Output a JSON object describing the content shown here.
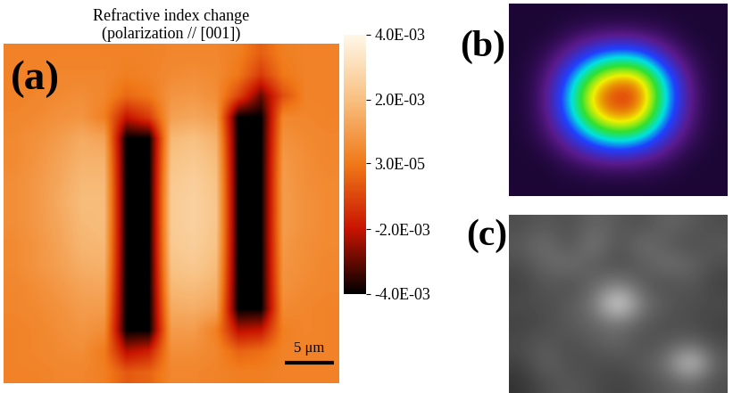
{
  "chart_data": {
    "type": "heatmap",
    "title": "Refractive index change",
    "subtitle": "(polarization // [001])",
    "panel_label": "(a)",
    "annotations": [
      "5 μm"
    ],
    "tick_labels": false,
    "cells": [
      [
        0.0003,
        0.0003,
        0.0003,
        0.0003,
        0.0003,
        0.0003,
        0.0003,
        0.0004,
        0.0004,
        0.0004,
        0.0002,
        -0.0005,
        0.0002,
        0.0003,
        0.0003
      ],
      [
        0.0003,
        0.0003,
        0.0004,
        0.0004,
        0.0004,
        0.0002,
        0.0003,
        0.0005,
        0.0006,
        0.0005,
        0.0,
        -0.0012,
        0.0,
        0.0003,
        0.0003
      ],
      [
        0.0003,
        0.0004,
        0.0005,
        0.0006,
        0.0004,
        -0.0003,
        0.0,
        0.0008,
        0.0009,
        0.0006,
        -0.001,
        -0.003,
        -0.0008,
        0.0003,
        0.0003
      ],
      [
        0.0004,
        0.0005,
        0.0007,
        0.0008,
        0.0002,
        -0.002,
        -0.0012,
        0.0011,
        0.0013,
        0.001,
        -0.004,
        -0.004,
        0.0004,
        0.0004,
        0.0003
      ],
      [
        0.0005,
        0.0007,
        0.001,
        0.0014,
        0.0012,
        -0.004,
        -0.004,
        0.0018,
        0.002,
        0.0016,
        -0.004,
        -0.004,
        0.0007,
        0.0005,
        0.0004
      ],
      [
        0.0005,
        0.0008,
        0.0012,
        0.0016,
        0.0016,
        -0.004,
        -0.004,
        0.0021,
        0.0023,
        0.0019,
        -0.004,
        -0.004,
        0.0009,
        0.0006,
        0.0004
      ],
      [
        0.0006,
        0.0009,
        0.0013,
        0.0018,
        0.0018,
        -0.004,
        -0.004,
        0.0023,
        0.0025,
        0.0021,
        -0.004,
        -0.004,
        0.001,
        0.0006,
        0.0005
      ],
      [
        0.0006,
        0.0009,
        0.0014,
        0.0019,
        0.0019,
        -0.004,
        -0.004,
        0.0024,
        0.0026,
        0.0022,
        -0.004,
        -0.004,
        0.001,
        0.0007,
        0.0005
      ],
      [
        0.0006,
        0.0009,
        0.0013,
        0.0018,
        0.0019,
        -0.004,
        -0.004,
        0.0024,
        0.0026,
        0.0022,
        -0.004,
        -0.004,
        0.001,
        0.0007,
        0.0005
      ],
      [
        0.0005,
        0.0008,
        0.0012,
        0.0017,
        0.0018,
        -0.004,
        -0.004,
        0.0023,
        0.0025,
        0.0021,
        -0.004,
        -0.004,
        0.0009,
        0.0006,
        0.0005
      ],
      [
        0.0005,
        0.0008,
        0.0011,
        0.0015,
        0.0016,
        -0.004,
        -0.004,
        0.0021,
        0.0023,
        0.0019,
        -0.004,
        -0.004,
        0.0008,
        0.0006,
        0.0004
      ],
      [
        0.0004,
        0.0006,
        0.0009,
        0.0012,
        0.0013,
        -0.004,
        -0.004,
        0.0018,
        0.0019,
        0.0016,
        -0.004,
        -0.004,
        0.0007,
        0.0005,
        0.0004
      ],
      [
        0.0004,
        0.0005,
        0.0007,
        0.001,
        0.001,
        -0.004,
        -0.004,
        0.0014,
        0.0015,
        0.0012,
        -0.004,
        -0.004,
        0.0005,
        0.0004,
        0.0003
      ],
      [
        0.0003,
        0.0004,
        0.0006,
        0.0008,
        0.0006,
        -0.004,
        -0.004,
        0.001,
        0.001,
        0.0002,
        -0.0022,
        -0.002,
        0.0002,
        0.0004,
        0.0003
      ],
      [
        0.0003,
        0.0004,
        0.0005,
        0.0006,
        0.0001,
        -0.0022,
        -0.0018,
        0.0006,
        0.0006,
        0.0004,
        -0.0004,
        -0.0002,
        0.0003,
        0.0003,
        0.0003
      ],
      [
        0.0003,
        0.0003,
        0.0004,
        0.0004,
        0.0002,
        -0.0006,
        -0.0004,
        0.0004,
        0.0004,
        0.0003,
        0.0002,
        0.0002,
        0.0003,
        0.0003,
        0.0003
      ]
    ],
    "colorbar": {
      "range": [
        -0.004,
        0.004
      ],
      "ticks": [
        {
          "value": -0.004,
          "label": "-4.0E-03"
        },
        {
          "value": -0.002,
          "label": "-2.0E-03"
        },
        {
          "value": 3e-05,
          "label": "3.0E-05"
        },
        {
          "value": 0.002,
          "label": "2.0E-03"
        },
        {
          "value": 0.004,
          "label": "4.0E-03"
        }
      ]
    }
  },
  "images": [
    {
      "type": "image",
      "panel_label": "(b)",
      "cells": [
        [
          0,
          0,
          0,
          0,
          0,
          0,
          0,
          0,
          0
        ],
        [
          0,
          0,
          0.05,
          0.1,
          0.12,
          0.1,
          0.05,
          0,
          0
        ],
        [
          0,
          0.05,
          0.2,
          0.4,
          0.5,
          0.45,
          0.2,
          0.05,
          0
        ],
        [
          0,
          0.1,
          0.4,
          0.75,
          0.9,
          0.85,
          0.45,
          0.1,
          0
        ],
        [
          0,
          0.12,
          0.5,
          0.9,
          1.0,
          0.95,
          0.5,
          0.12,
          0
        ],
        [
          0,
          0.1,
          0.4,
          0.75,
          0.88,
          0.8,
          0.4,
          0.1,
          0
        ],
        [
          0,
          0.05,
          0.2,
          0.4,
          0.5,
          0.42,
          0.2,
          0.05,
          0
        ],
        [
          0,
          0,
          0.05,
          0.1,
          0.12,
          0.1,
          0.05,
          0,
          0
        ],
        [
          0,
          0,
          0,
          0,
          0,
          0,
          0,
          0,
          0
        ]
      ]
    },
    {
      "type": "image",
      "panel_label": "(c)",
      "cells": [
        [
          0.3,
          0.35,
          0.3,
          0.4,
          0.35,
          0.3,
          0.4,
          0.35,
          0.3
        ],
        [
          0.35,
          0.45,
          0.3,
          0.5,
          0.3,
          0.45,
          0.35,
          0.3,
          0.35
        ],
        [
          0.3,
          0.4,
          0.45,
          0.35,
          0.3,
          0.35,
          0.45,
          0.4,
          0.3
        ],
        [
          0.25,
          0.35,
          0.3,
          0.4,
          0.5,
          0.35,
          0.3,
          0.35,
          0.25
        ],
        [
          0.3,
          0.3,
          0.35,
          0.45,
          1.0,
          0.45,
          0.35,
          0.3,
          0.3
        ],
        [
          0.25,
          0.3,
          0.35,
          0.4,
          0.45,
          0.35,
          0.3,
          0.3,
          0.25
        ],
        [
          0.3,
          0.35,
          0.3,
          0.35,
          0.4,
          0.3,
          0.35,
          0.4,
          0.3
        ],
        [
          0.25,
          0.4,
          0.3,
          0.3,
          0.3,
          0.35,
          0.45,
          0.9,
          0.35
        ],
        [
          0.2,
          0.3,
          0.35,
          0.3,
          0.25,
          0.3,
          0.35,
          0.4,
          0.3
        ]
      ]
    }
  ]
}
